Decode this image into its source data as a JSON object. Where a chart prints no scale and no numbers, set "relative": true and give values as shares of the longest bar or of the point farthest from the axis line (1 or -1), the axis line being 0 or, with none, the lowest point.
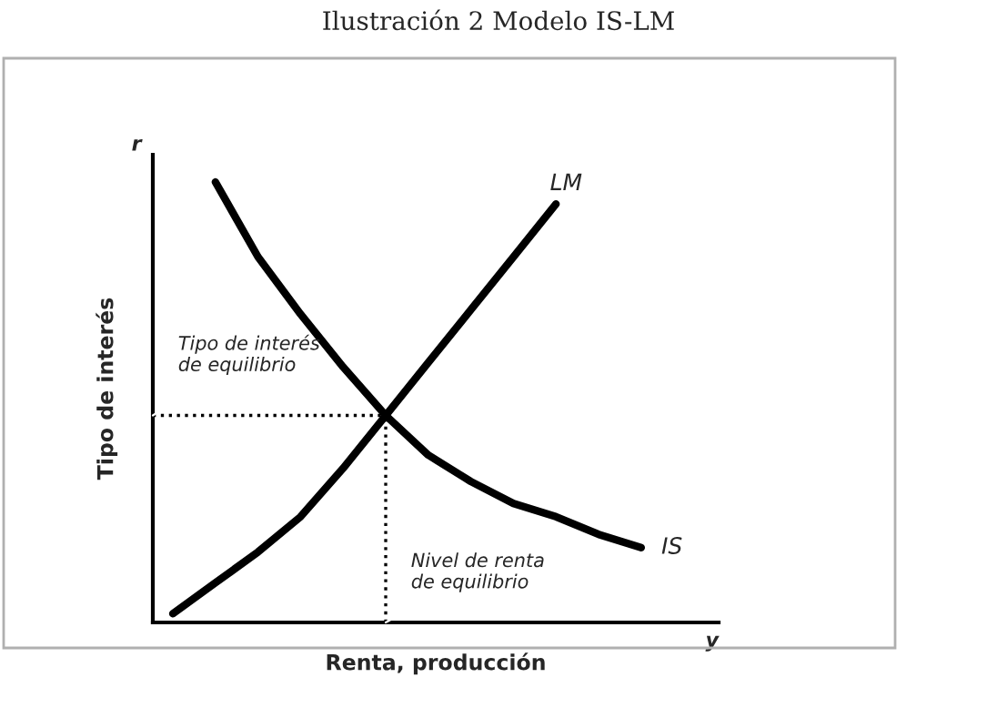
{
  "chart_data": {
    "type": "line",
    "title": "Ilustración 2 Modelo IS-LM",
    "xlabel": "Renta, producción",
    "ylabel": "Tipo de interés",
    "relative": true,
    "categories": [
      null,
      null,
      null,
      null,
      null,
      null,
      null,
      null,
      null,
      null,
      null,
      null
    ],
    "series": [
      {
        "name": "LM",
        "color": "#000000",
        "values": [
          0.02,
          0.09,
          0.16,
          0.24,
          0.35,
          0.47,
          0.59,
          0.71,
          0.83,
          0.95,
          null,
          null
        ]
      },
      {
        "name": "IS",
        "color": "#000000",
        "values": [
          null,
          1.0,
          0.83,
          0.7,
          0.58,
          0.47,
          0.38,
          0.32,
          0.27,
          0.24,
          0.2,
          0.17
        ]
      }
    ],
    "ref_lines": [
      {
        "axis": "y",
        "value": 0.47,
        "label": "Tipo de interés\nde equilibrio",
        "line_style": "dotted"
      }
    ],
    "annotations": [
      "r",
      "y",
      "Nivel de renta\nde equilibrio"
    ],
    "legend": false,
    "line_style": "solid",
    "marker": "none"
  }
}
